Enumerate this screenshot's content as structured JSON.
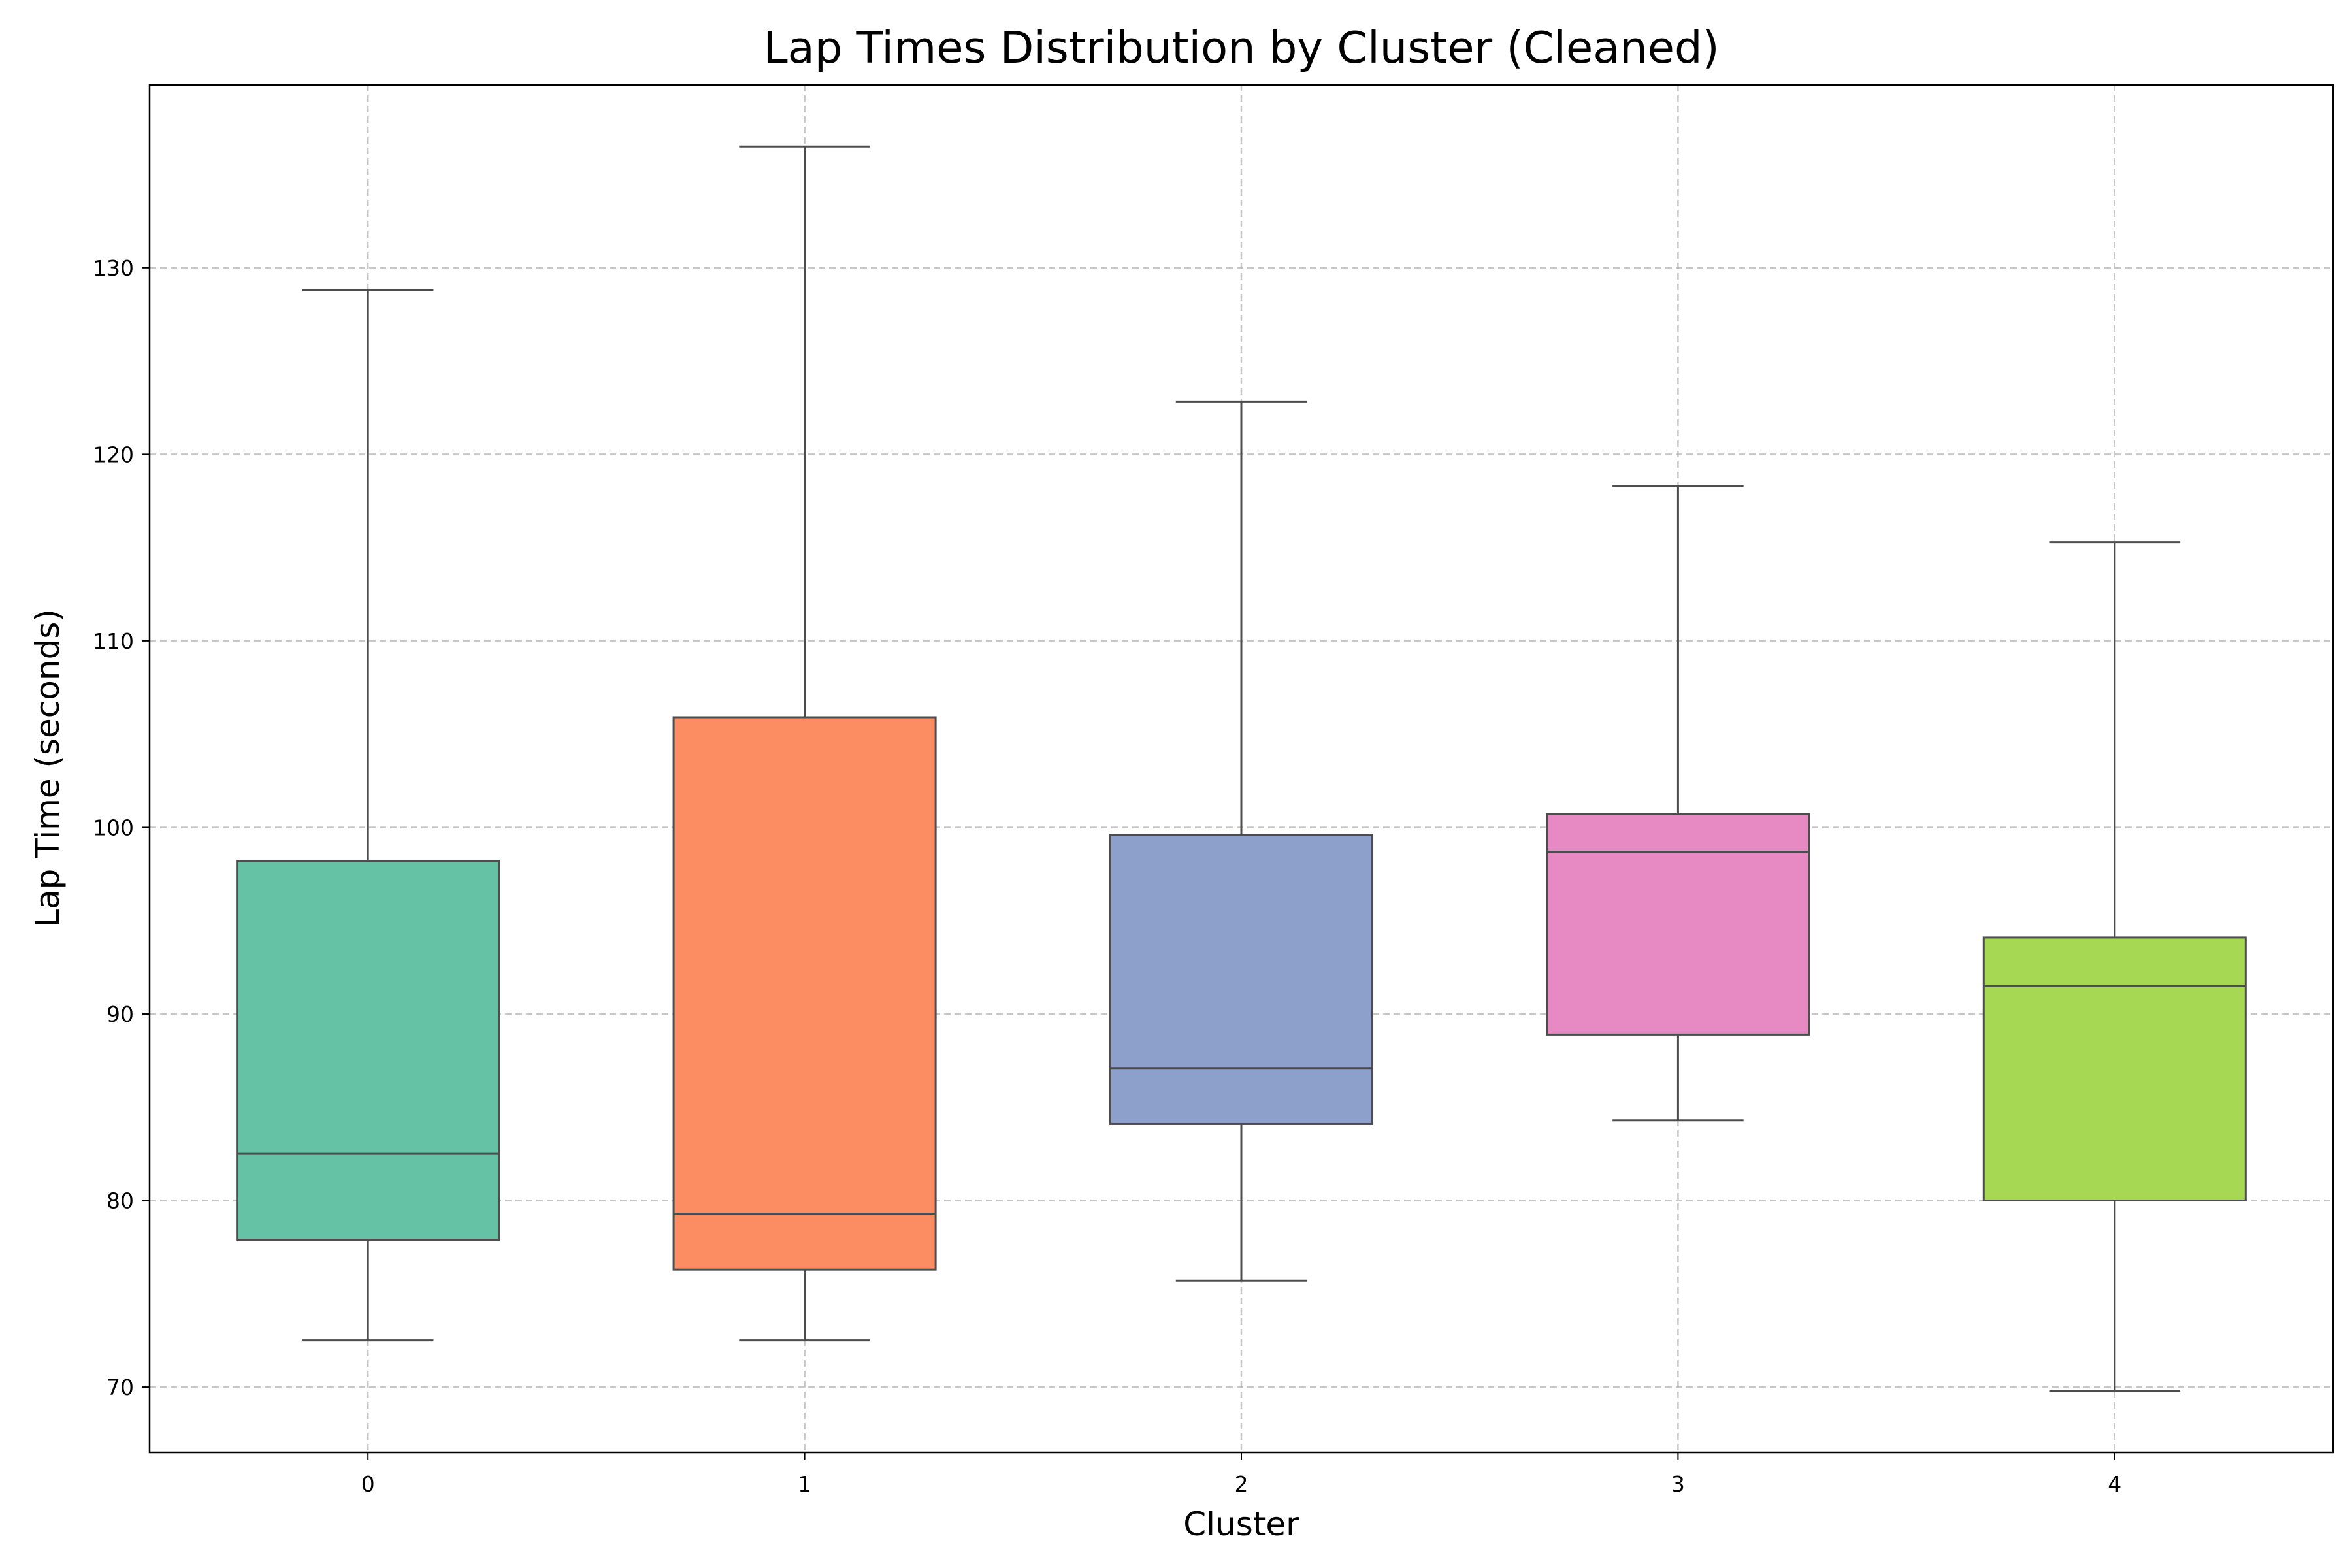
{
  "chart_data": {
    "type": "boxplot",
    "title": "Lap Times Distribution by Cluster (Cleaned)",
    "xlabel": "Cluster",
    "ylabel": "Lap Time (seconds)",
    "ylim": [
      66.5,
      139.8
    ],
    "yticks": [
      70,
      80,
      90,
      100,
      110,
      120,
      130
    ],
    "grid": true,
    "categories": [
      "0",
      "1",
      "2",
      "3",
      "4"
    ],
    "boxes": [
      {
        "category": "0",
        "min": 72.5,
        "q1": 77.9,
        "median": 82.5,
        "q3": 98.2,
        "max": 128.8,
        "color": "#66c2a5"
      },
      {
        "category": "1",
        "min": 72.5,
        "q1": 76.3,
        "median": 79.3,
        "q3": 105.9,
        "max": 136.5,
        "color": "#fc8d62"
      },
      {
        "category": "2",
        "min": 75.7,
        "q1": 84.1,
        "median": 87.1,
        "q3": 99.6,
        "max": 122.8,
        "color": "#8da0cb"
      },
      {
        "category": "3",
        "min": 84.3,
        "q1": 88.9,
        "median": 98.7,
        "q3": 100.7,
        "max": 118.3,
        "color": "#e78ac3"
      },
      {
        "category": "4",
        "min": 69.8,
        "q1": 80.0,
        "median": 91.5,
        "q3": 94.1,
        "max": 115.3,
        "color": "#a6d854"
      }
    ]
  }
}
